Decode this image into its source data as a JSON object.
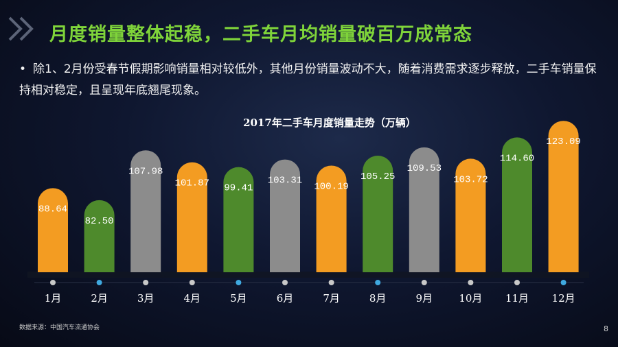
{
  "header": {
    "title": "月度销量整体起稳，二手车月均销量破百万成常态"
  },
  "bullet": {
    "marker": "•",
    "text": "除1、2月份受春节假期影响销量相对较低外，其他月份销量波动不大，随着消费需求逐步释放，二手车销量保持相对稳定，且呈现年底翘尾现象。"
  },
  "footer": {
    "source": "数据来源：中国汽车流通协会",
    "page": "8"
  },
  "colors": {
    "orange": "#f39c22",
    "green": "#4e8a2c",
    "gray": "#8c8c8c",
    "title_green": "#7fd43a",
    "dot_blue": "#3fa9e0",
    "dot_gray": "#c8c8c8"
  },
  "chart_data": {
    "type": "bar",
    "title": "2017年二手车月度销量走势（万辆）",
    "categories": [
      "1月",
      "2月",
      "3月",
      "4月",
      "5月",
      "6月",
      "7月",
      "8月",
      "9月",
      "10月",
      "11月",
      "12月"
    ],
    "values": [
      88.64,
      82.5,
      107.98,
      101.87,
      99.41,
      103.31,
      100.19,
      105.25,
      109.53,
      103.72,
      114.6,
      123.09
    ],
    "labels": [
      "88.64",
      "82.50",
      "107.98",
      "101.87",
      "99.41",
      "103.31",
      "100.19",
      "105.25",
      "109.53",
      "103.72",
      "114.60",
      "123.09"
    ],
    "bar_colors": [
      "orange",
      "green",
      "gray",
      "orange",
      "green",
      "gray",
      "orange",
      "green",
      "gray",
      "orange",
      "green",
      "orange"
    ],
    "dot_colors": [
      "dot_gray",
      "dot_blue",
      "dot_gray",
      "dot_gray",
      "dot_blue",
      "dot_gray",
      "dot_gray",
      "dot_blue",
      "dot_gray",
      "dot_gray",
      "dot_gray",
      "dot_blue"
    ],
    "xlabel": "",
    "ylabel": "",
    "grid": false
  }
}
